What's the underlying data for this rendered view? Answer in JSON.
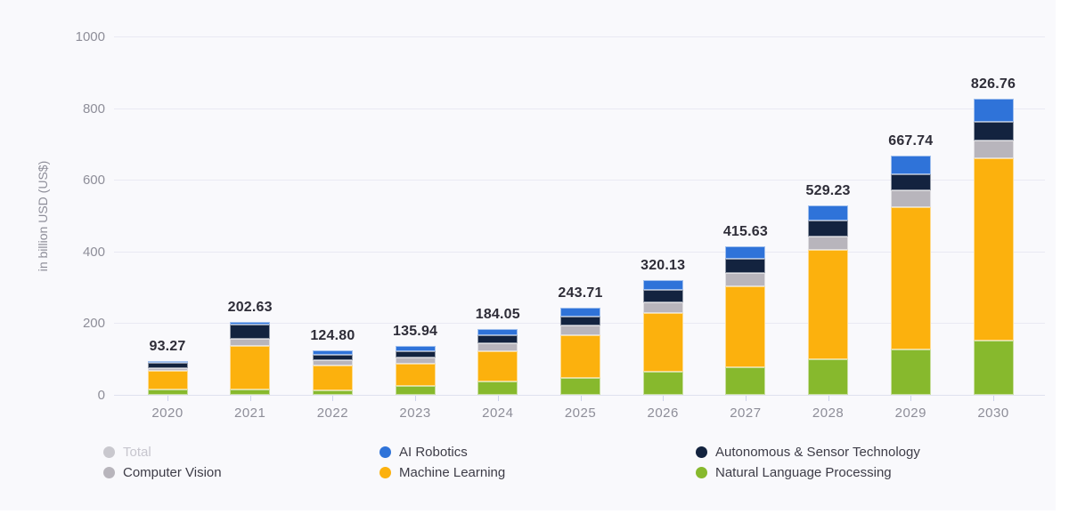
{
  "page": {
    "background": "#f9f9fc"
  },
  "chart_data": {
    "type": "bar",
    "subtype": "stacked",
    "title": "",
    "ylabel": "in billion USD (US$)",
    "xlabel": "",
    "ylim": [
      0,
      1000
    ],
    "yticks": [
      0,
      200,
      400,
      600,
      800,
      1000
    ],
    "grid": true,
    "legend_position": "bottom",
    "categories": [
      "2020",
      "2021",
      "2022",
      "2023",
      "2024",
      "2025",
      "2026",
      "2027",
      "2028",
      "2029",
      "2030"
    ],
    "totals": [
      93.27,
      202.63,
      124.8,
      135.94,
      184.05,
      243.71,
      320.13,
      415.63,
      529.23,
      667.74,
      826.76
    ],
    "total_labels": [
      "93.27",
      "202.63",
      "124.80",
      "135.94",
      "184.05",
      "243.71",
      "320.13",
      "415.63",
      "529.23",
      "667.74",
      "826.76"
    ],
    "series": [
      {
        "name": "Natural Language Processing",
        "slug": "natural-language-processing",
        "color": "#87b92d",
        "values": [
          15.5,
          15.1,
          13.0,
          25.84,
          36.3,
          45.9,
          63.5,
          77.4,
          98.0,
          126.9,
          152.4
        ]
      },
      {
        "name": "Machine Learning",
        "slug": "machine-learning",
        "color": "#fcb10d",
        "values": [
          53.8,
          121.5,
          69.4,
          60.2,
          86.15,
          119.41,
          163.63,
          225.63,
          305.63,
          397.34,
          506.96
        ]
      },
      {
        "name": "Computer Vision",
        "slug": "computer-vision",
        "color": "#b8b5bc",
        "values": [
          7.5,
          20.9,
          15.6,
          18.9,
          21.9,
          27.5,
          29.7,
          37.9,
          37.7,
          45.8,
          50.7
        ]
      },
      {
        "name": "Autonomous & Sensor Technology",
        "slug": "autonomous-sensor-technology",
        "color": "#13233f",
        "values": [
          14.0,
          37.6,
          14.7,
          17.3,
          21.1,
          25.0,
          37.2,
          37.9,
          46.2,
          44.4,
          51.7
        ]
      },
      {
        "name": "AI Robotics",
        "slug": "ai-robotics",
        "color": "#2f73d9",
        "values": [
          2.47,
          7.53,
          12.1,
          13.7,
          18.6,
          25.9,
          26.1,
          36.8,
          41.7,
          53.3,
          65.0
        ]
      }
    ],
    "legend_columns": [
      [
        {
          "label": "Total",
          "slug": "total",
          "color": "#c9c8ce",
          "disabled": true
        },
        {
          "label": "Computer Vision",
          "slug": "computer-vision",
          "color": "#b8b5bc",
          "disabled": false
        }
      ],
      [
        {
          "label": "AI Robotics",
          "slug": "ai-robotics",
          "color": "#2f73d9",
          "disabled": false
        },
        {
          "label": "Machine Learning",
          "slug": "machine-learning",
          "color": "#fcb10d",
          "disabled": false
        }
      ],
      [
        {
          "label": "Autonomous & Sensor Technology",
          "slug": "autonomous-sensor-technology",
          "color": "#13233f",
          "disabled": false
        },
        {
          "label": "Natural Language Processing",
          "slug": "natural-language-processing",
          "color": "#87b92d",
          "disabled": false
        }
      ]
    ]
  }
}
